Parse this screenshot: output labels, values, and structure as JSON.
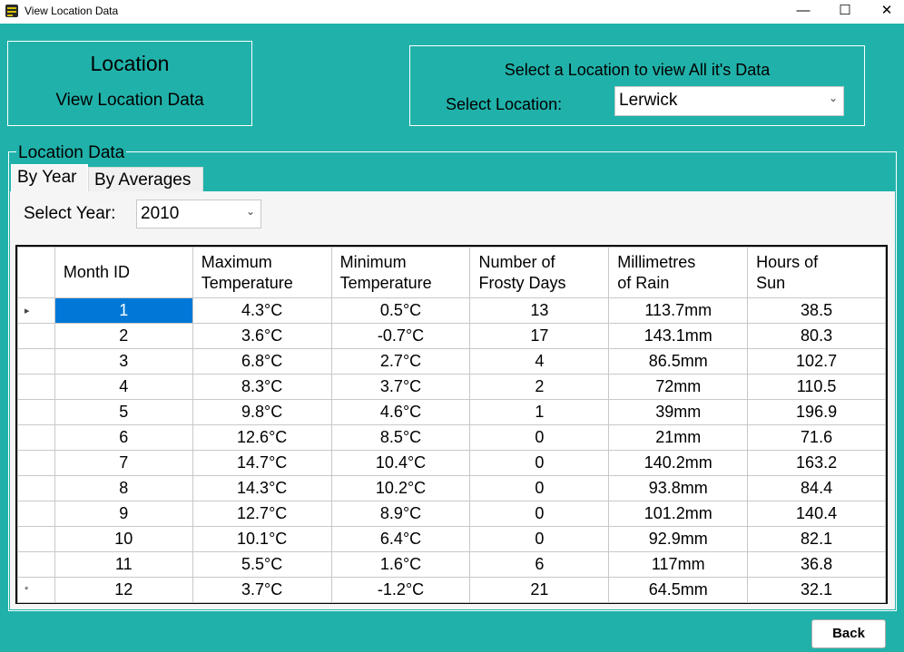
{
  "window": {
    "title": "View Location Data",
    "minimize_label": "—",
    "maximize_label": "☐",
    "close_label": "✕"
  },
  "location_box": {
    "title": "Location",
    "subtitle": "View Location Data"
  },
  "selector_box": {
    "title": "Select a Location to view All it's Data",
    "label": "Select Location:",
    "selected": "Lerwick",
    "arrow": "⌄"
  },
  "group": {
    "label": "Location Data"
  },
  "tabs": [
    {
      "label": "By Year",
      "active": true
    },
    {
      "label": "By Averages",
      "active": false
    }
  ],
  "year": {
    "label": "Select Year:",
    "selected": "2010",
    "arrow": "⌄"
  },
  "grid": {
    "columns": [
      [
        "Month ID"
      ],
      [
        "Maximum",
        "Temperature"
      ],
      [
        "Minimum",
        "Temperature"
      ],
      [
        "Number of",
        "Frosty Days"
      ],
      [
        "Millimetres",
        "of Rain"
      ],
      [
        "Hours of",
        "Sun"
      ]
    ],
    "rows": [
      [
        "1",
        "4.3°C",
        "0.5°C",
        "13",
        "113.7mm",
        "38.5"
      ],
      [
        "2",
        "3.6°C",
        "-0.7°C",
        "17",
        "143.1mm",
        "80.3"
      ],
      [
        "3",
        "6.8°C",
        "2.7°C",
        "4",
        "86.5mm",
        "102.7"
      ],
      [
        "4",
        "8.3°C",
        "3.7°C",
        "2",
        "72mm",
        "110.5"
      ],
      [
        "5",
        "9.8°C",
        "4.6°C",
        "1",
        "39mm",
        "196.9"
      ],
      [
        "6",
        "12.6°C",
        "8.5°C",
        "0",
        "21mm",
        "71.6"
      ],
      [
        "7",
        "14.7°C",
        "10.4°C",
        "0",
        "140.2mm",
        "163.2"
      ],
      [
        "8",
        "14.3°C",
        "10.2°C",
        "0",
        "93.8mm",
        "84.4"
      ],
      [
        "9",
        "12.7°C",
        "8.9°C",
        "0",
        "101.2mm",
        "140.4"
      ],
      [
        "10",
        "10.1°C",
        "6.4°C",
        "0",
        "92.9mm",
        "82.1"
      ],
      [
        "11",
        "5.5°C",
        "1.6°C",
        "6",
        "117mm",
        "36.8"
      ],
      [
        "12",
        "3.7°C",
        "-1.2°C",
        "21",
        "64.5mm",
        "32.1"
      ]
    ],
    "row_markers": [
      "▸",
      "",
      "",
      "",
      "",
      "",
      "",
      "",
      "",
      "",
      "",
      "*"
    ],
    "selected_row": 0
  },
  "back_button": {
    "label": "Back"
  },
  "colors": {
    "background": "#20b2aa",
    "selection": "#0078d7"
  }
}
